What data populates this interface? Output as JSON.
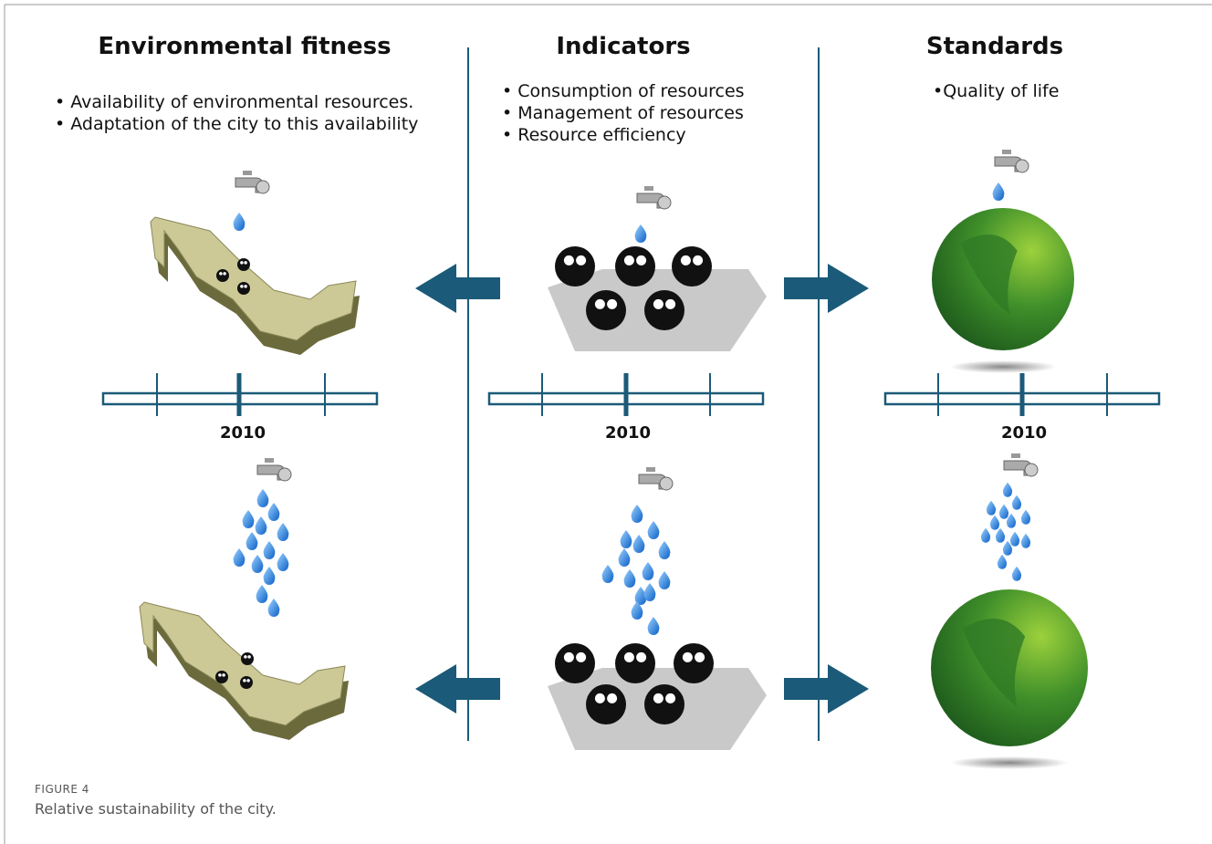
{
  "columns": [
    {
      "title": "Environmental fitness",
      "bullets": [
        "Availability of environmental resources.",
        "Adaptation of the city to this availability"
      ],
      "timeline_label": "2010"
    },
    {
      "title": "Indicators",
      "bullets": [
        "Consumption of resources",
        "Management of resources",
        "Resource efficiency"
      ],
      "timeline_label": "2010"
    },
    {
      "title": "Standards",
      "bullets": [
        "Quality of life"
      ],
      "timeline_label": "2010"
    }
  ],
  "figure": {
    "label": "FIGURE 4",
    "caption": "Relative sustainability of the city."
  }
}
